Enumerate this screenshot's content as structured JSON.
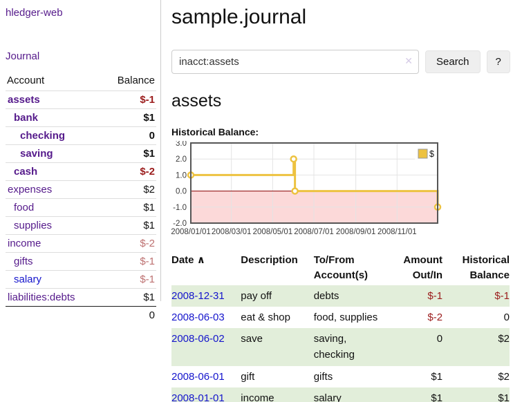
{
  "sidebar": {
    "app_title": "hledger-web",
    "journal_link": "Journal",
    "accounts_table": {
      "headers": {
        "account": "Account",
        "balance": "Balance"
      },
      "accounts": [
        {
          "name": "assets",
          "depth": 0,
          "bold": true,
          "balance": "$-1",
          "neg": "strong"
        },
        {
          "name": "bank",
          "depth": 1,
          "bold": true,
          "balance": "$1"
        },
        {
          "name": "checking",
          "depth": 2,
          "bold": true,
          "balance": "0"
        },
        {
          "name": "saving",
          "depth": 2,
          "bold": true,
          "balance": "$1"
        },
        {
          "name": "cash",
          "depth": 1,
          "bold": true,
          "balance": "$-2",
          "neg": "strong"
        },
        {
          "name": "expenses",
          "depth": 0,
          "bold": false,
          "balance": "$2"
        },
        {
          "name": "food",
          "depth": 1,
          "bold": false,
          "balance": "$1"
        },
        {
          "name": "supplies",
          "depth": 1,
          "bold": false,
          "balance": "$1"
        },
        {
          "name": "income",
          "depth": 0,
          "bold": false,
          "balance": "$-2",
          "neg": "light"
        },
        {
          "name": "gifts",
          "depth": 1,
          "bold": false,
          "balance": "$-1",
          "neg": "light"
        },
        {
          "name": "salary",
          "depth": 1,
          "bold": false,
          "balance": "$-1",
          "neg": "light",
          "blue": true
        },
        {
          "name": "liabilities:debts",
          "depth": 0,
          "bold": false,
          "balance": "$1"
        }
      ],
      "total": "0"
    }
  },
  "main": {
    "title": "sample.journal",
    "search": {
      "value": "inacct:assets",
      "clear_icon": "✕",
      "search_button": "Search",
      "help_button": "?"
    },
    "account_heading": "assets",
    "chart_heading": "Historical Balance:"
  },
  "chart_data": {
    "type": "line",
    "step": true,
    "title": "Historical Balance:",
    "series": [
      {
        "name": "$",
        "color": "#edc240",
        "points": [
          [
            "2008-01-01",
            1
          ],
          [
            "2008-06-01",
            2
          ],
          [
            "2008-06-03",
            0
          ],
          [
            "2008-12-31",
            -1
          ]
        ]
      }
    ],
    "xlim": [
      "2008-01-01",
      "2008-12-31"
    ],
    "ylim": [
      -2,
      3
    ],
    "x_tick_labels": [
      "2008/01/01",
      "2008/03/01",
      "2008/05/01",
      "2008/07/01",
      "2008/09/01",
      "2008/11/01"
    ],
    "y_tick_labels": [
      "3.0",
      "2.0",
      "1.0",
      "0.0",
      "-1.0",
      "-2.0"
    ],
    "y_tick_values": [
      3,
      2,
      1,
      0,
      -1,
      -2
    ],
    "grid": true,
    "legend_position": "top-right",
    "legend_label": "$",
    "colors": {
      "negative_region": "#fcd9d9",
      "zero_line": "#8b0000",
      "gridline": "#e4e4e4",
      "plot_border": "#555555",
      "marker_fill": "#ffffff"
    }
  },
  "register_table": {
    "headers": {
      "date": "Date",
      "sort_arrow": "∧",
      "description": "Description",
      "accounts": "To/From Account(s)",
      "amount": "Amount Out/In",
      "balance": "Historical Balance"
    },
    "rows": [
      {
        "date": "2008-12-31",
        "description": "pay off",
        "accounts": "debts",
        "amount": "$-1",
        "amount_neg": true,
        "balance": "$-1",
        "balance_neg": true
      },
      {
        "date": "2008-06-03",
        "description": "eat & shop",
        "accounts": "food, supplies",
        "amount": "$-2",
        "amount_neg": true,
        "balance": "0",
        "balance_neg": false
      },
      {
        "date": "2008-06-02",
        "description": "save",
        "accounts": "saving, checking",
        "amount": "0",
        "amount_neg": false,
        "balance": "$2",
        "balance_neg": false
      },
      {
        "date": "2008-06-01",
        "description": "gift",
        "accounts": "gifts",
        "amount": "$1",
        "amount_neg": false,
        "balance": "$2",
        "balance_neg": false
      },
      {
        "date": "2008-01-01",
        "description": "income",
        "accounts": "salary",
        "amount": "$1",
        "amount_neg": false,
        "balance": "$1",
        "balance_neg": false
      }
    ]
  },
  "colors": {
    "link_purple": "#551a8b",
    "link_blue": "#1414cc",
    "negative_strong": "#9b1c1c",
    "negative_light": "#bd7070",
    "row_stripe_green": "#e2eeda",
    "series_yellow": "#edc240"
  }
}
